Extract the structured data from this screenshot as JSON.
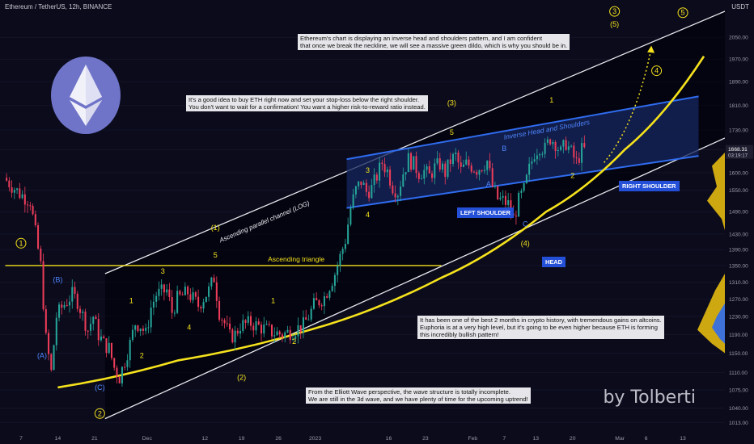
{
  "header": {
    "symbol_line": "Ethereum / TetherUS, 12h, BINANCE",
    "currency": "USDT"
  },
  "signature": "by Tolberti",
  "notes": {
    "top": [
      "Ethereum's chart is displaying an inverse head and shoulders pattern, and I am confident",
      "that once we break the neckline, we will see a massive green dildo, which is why you should be in."
    ],
    "stop": [
      "It's a good idea to buy ETH right now and set your stop-loss below the right shoulder.",
      "You don't want to wait for a confirmation! You want a higher risk-to-reward ratio instead."
    ],
    "months": [
      "It has been one of the best 2 months in crypto history, with tremendous gains on altcoins.",
      "Euphoria is at a very high level, but it's going to be even higher because ETH is forming",
      "this incredibly bullish pattern!"
    ],
    "elliott": [
      "From the Elliott Wave perspective, the wave structure is totally incomplete.",
      "We are still in the 3d wave, and we have plenty of time for the upcoming uptrend!"
    ]
  },
  "tags": {
    "left_shoulder": "LEFT SHOULDER",
    "right_shoulder": "RIGHT SHOULDER",
    "head": "HEAD"
  },
  "colors": {
    "bg": "#0b0b1c",
    "up": "#26a69a",
    "down": "#ef3d5a",
    "yellow": "#f5e21c",
    "blue": "#2f6cf0",
    "white": "#e8e8ee",
    "grid": "#1a1a30"
  },
  "chart_data": {
    "type": "candlestick",
    "yscale": "log",
    "ylim": [
      1000,
      2150
    ],
    "y_ticks": [
      2050,
      1970,
      1890,
      1810,
      1730,
      1668.31,
      1600,
      1550,
      1490,
      1430,
      1390,
      1350,
      1310,
      1270,
      1230,
      1190,
      1150,
      1110,
      1075,
      1040,
      1013
    ],
    "price_label": {
      "value": "1668.31",
      "countdown": "03:19:17"
    },
    "x_ticks": [
      {
        "label": "7",
        "day": 0
      },
      {
        "label": "14",
        "day": 7
      },
      {
        "label": "21",
        "day": 14
      },
      {
        "label": "Dec",
        "day": 24
      },
      {
        "label": "12",
        "day": 35
      },
      {
        "label": "19",
        "day": 42
      },
      {
        "label": "26",
        "day": 49
      },
      {
        "label": "2023",
        "day": 56
      },
      {
        "label": "16",
        "day": 70
      },
      {
        "label": "23",
        "day": 77
      },
      {
        "label": "Feb",
        "day": 86
      },
      {
        "label": "7",
        "day": 92
      },
      {
        "label": "13",
        "day": 98
      },
      {
        "label": "20",
        "day": 105
      },
      {
        "label": "Mar",
        "day": 114
      },
      {
        "label": "6",
        "day": 119
      },
      {
        "label": "13",
        "day": 126
      }
    ],
    "price_path": [
      [
        -3,
        1585
      ],
      [
        0,
        1540
      ],
      [
        2,
        1520
      ],
      [
        4,
        1350
      ],
      [
        5,
        1180
      ],
      [
        6,
        1110
      ],
      [
        7,
        1230
      ],
      [
        8,
        1250
      ],
      [
        10,
        1280
      ],
      [
        11,
        1265
      ],
      [
        13,
        1200
      ],
      [
        14,
        1230
      ],
      [
        15,
        1190
      ],
      [
        16,
        1170
      ],
      [
        17,
        1160
      ],
      [
        18,
        1120
      ],
      [
        19,
        1100
      ],
      [
        21,
        1170
      ],
      [
        22,
        1215
      ],
      [
        23,
        1210
      ],
      [
        24,
        1190
      ],
      [
        25,
        1250
      ],
      [
        26,
        1280
      ],
      [
        28,
        1290
      ],
      [
        29,
        1240
      ],
      [
        30,
        1270
      ],
      [
        32,
        1285
      ],
      [
        34,
        1255
      ],
      [
        36,
        1290
      ],
      [
        37,
        1320
      ],
      [
        38,
        1240
      ],
      [
        39,
        1215
      ],
      [
        40,
        1185
      ],
      [
        41,
        1190
      ],
      [
        42,
        1210
      ],
      [
        44,
        1215
      ],
      [
        46,
        1205
      ],
      [
        48,
        1195
      ],
      [
        50,
        1190
      ],
      [
        52,
        1198
      ],
      [
        54,
        1210
      ],
      [
        55,
        1230
      ],
      [
        56,
        1255
      ],
      [
        58,
        1275
      ],
      [
        60,
        1330
      ],
      [
        62,
        1415
      ],
      [
        63,
        1500
      ],
      [
        64,
        1550
      ],
      [
        65,
        1575
      ],
      [
        66,
        1545
      ],
      [
        67,
        1555
      ],
      [
        68,
        1590
      ],
      [
        69,
        1630
      ],
      [
        70,
        1605
      ],
      [
        71,
        1560
      ],
      [
        72,
        1545
      ],
      [
        73,
        1600
      ],
      [
        74,
        1640
      ],
      [
        75,
        1625
      ],
      [
        76,
        1600
      ],
      [
        77,
        1605
      ],
      [
        78,
        1590
      ],
      [
        79,
        1615
      ],
      [
        80,
        1625
      ],
      [
        81,
        1600
      ],
      [
        82,
        1635
      ],
      [
        83,
        1650
      ],
      [
        84,
        1605
      ],
      [
        85,
        1625
      ],
      [
        86,
        1620
      ],
      [
        87,
        1610
      ],
      [
        88,
        1620
      ],
      [
        89,
        1635
      ],
      [
        90,
        1560
      ],
      [
        91,
        1525
      ],
      [
        92,
        1520
      ],
      [
        93,
        1510
      ],
      [
        94,
        1470
      ],
      [
        95,
        1520
      ],
      [
        96,
        1550
      ],
      [
        97,
        1610
      ],
      [
        98,
        1660
      ],
      [
        99,
        1680
      ],
      [
        100,
        1670
      ],
      [
        101,
        1705
      ],
      [
        102,
        1690
      ],
      [
        103,
        1660
      ],
      [
        104,
        1690
      ],
      [
        105,
        1660
      ],
      [
        106,
        1630
      ],
      [
        107,
        1668
      ]
    ],
    "overlays": {
      "ascending_channel": {
        "label": "Ascending parallel channel (LOG)",
        "upper": [
          [
            16,
            1330
          ],
          [
            134,
            2150
          ]
        ],
        "lower": [
          [
            16,
            1020
          ],
          [
            134,
            1705
          ]
        ]
      },
      "inverse_hs_channel": {
        "label": "Inverse Head and Shoulders",
        "upper": [
          [
            62,
            1640
          ],
          [
            129,
            1840
          ]
        ],
        "lower": [
          [
            62,
            1500
          ],
          [
            129,
            1650
          ]
        ]
      },
      "ascending_triangle": {
        "label": "Ascending triangle",
        "level": 1350,
        "from": -3,
        "to": 80
      },
      "support_curve": [
        [
          7,
          1080
        ],
        [
          30,
          1135
        ],
        [
          55,
          1200
        ],
        [
          80,
          1320
        ],
        [
          100,
          1490
        ],
        [
          115,
          1670
        ],
        [
          130,
          1980
        ]
      ],
      "projection": [
        [
          111,
          1630
        ],
        [
          117,
          1800
        ],
        [
          120,
          2010
        ]
      ]
    },
    "wave_labels": [
      {
        "text": "1",
        "day": 0,
        "price": 1400,
        "circled": true
      },
      {
        "text": "(B)",
        "day": 7,
        "price": 1310,
        "color": "blue"
      },
      {
        "text": "(A)",
        "day": 4,
        "price": 1140,
        "color": "blue"
      },
      {
        "text": "(C)",
        "day": 15,
        "price": 1075,
        "color": "blue"
      },
      {
        "text": "2",
        "day": 15,
        "price": 1025,
        "circled": true
      },
      {
        "text": "1",
        "day": 21,
        "price": 1260
      },
      {
        "text": "2",
        "day": 23,
        "price": 1140
      },
      {
        "text": "3",
        "day": 27,
        "price": 1330
      },
      {
        "text": "4",
        "day": 32,
        "price": 1200
      },
      {
        "text": "(1)",
        "day": 37,
        "price": 1440
      },
      {
        "text": "5",
        "day": 37,
        "price": 1370
      },
      {
        "text": "1",
        "day": 48,
        "price": 1260
      },
      {
        "text": "(2)",
        "day": 42,
        "price": 1095
      },
      {
        "text": "2",
        "day": 52,
        "price": 1170
      },
      {
        "text": "3",
        "day": 66,
        "price": 1600
      },
      {
        "text": "4",
        "day": 66,
        "price": 1475
      },
      {
        "text": "(3)",
        "day": 82,
        "price": 1810
      },
      {
        "text": "5",
        "day": 82,
        "price": 1715
      },
      {
        "text": "A",
        "day": 89,
        "price": 1560,
        "color": "blue"
      },
      {
        "text": "B",
        "day": 92,
        "price": 1665,
        "color": "blue"
      },
      {
        "text": "C",
        "day": 96,
        "price": 1450,
        "color": "blue"
      },
      {
        "text": "(4)",
        "day": 96,
        "price": 1400
      },
      {
        "text": "1",
        "day": 101,
        "price": 1820
      },
      {
        "text": "2",
        "day": 105,
        "price": 1585
      },
      {
        "text": "3",
        "day": 113,
        "price": 2140,
        "circled": true
      },
      {
        "text": "(5)",
        "day": 113,
        "price": 2090
      },
      {
        "text": "4",
        "day": 121,
        "price": 1920,
        "circled": true
      },
      {
        "text": "5",
        "day": 126,
        "price": 2135,
        "circled": true
      }
    ]
  }
}
